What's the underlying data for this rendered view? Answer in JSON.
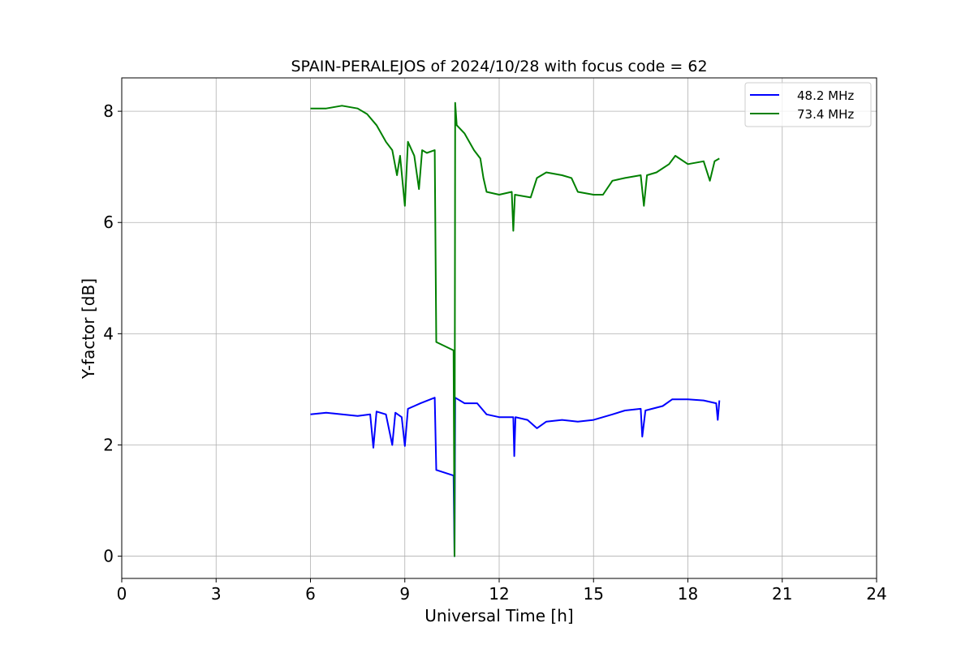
{
  "chart_data": {
    "type": "line",
    "title": "SPAIN-PERALEJOS of 2024/10/28 with focus code = 62",
    "xlabel": "Universal Time [h]",
    "ylabel": "Y-factor [dB]",
    "xlim": [
      0,
      24
    ],
    "ylim": [
      -0.4,
      8.6
    ],
    "xticks": [
      0,
      3,
      6,
      9,
      12,
      15,
      18,
      21,
      24
    ],
    "yticks": [
      0,
      2,
      4,
      6,
      8
    ],
    "grid": true,
    "legend_position": "top-right",
    "series": [
      {
        "name": "48.2 MHz",
        "color": "#0000ff",
        "points": [
          [
            6.0,
            2.55
          ],
          [
            6.5,
            2.58
          ],
          [
            7.0,
            2.55
          ],
          [
            7.5,
            2.52
          ],
          [
            7.9,
            2.55
          ],
          [
            8.0,
            1.95
          ],
          [
            8.1,
            2.6
          ],
          [
            8.4,
            2.55
          ],
          [
            8.6,
            2.0
          ],
          [
            8.7,
            2.58
          ],
          [
            8.9,
            2.5
          ],
          [
            9.0,
            1.98
          ],
          [
            9.1,
            2.65
          ],
          [
            9.5,
            2.75
          ],
          [
            9.95,
            2.85
          ],
          [
            10.0,
            1.55
          ],
          [
            10.55,
            1.45
          ],
          [
            10.58,
            0.0
          ],
          [
            10.6,
            2.85
          ],
          [
            10.9,
            2.75
          ],
          [
            11.3,
            2.75
          ],
          [
            11.6,
            2.55
          ],
          [
            12.0,
            2.5
          ],
          [
            12.45,
            2.5
          ],
          [
            12.48,
            1.8
          ],
          [
            12.52,
            2.5
          ],
          [
            12.9,
            2.45
          ],
          [
            13.2,
            2.3
          ],
          [
            13.5,
            2.42
          ],
          [
            14.0,
            2.45
          ],
          [
            14.5,
            2.42
          ],
          [
            15.0,
            2.45
          ],
          [
            15.6,
            2.55
          ],
          [
            16.0,
            2.62
          ],
          [
            16.5,
            2.65
          ],
          [
            16.55,
            2.15
          ],
          [
            16.65,
            2.62
          ],
          [
            17.2,
            2.7
          ],
          [
            17.5,
            2.82
          ],
          [
            18.0,
            2.82
          ],
          [
            18.5,
            2.8
          ],
          [
            18.9,
            2.75
          ],
          [
            18.95,
            2.45
          ],
          [
            19.0,
            2.8
          ]
        ]
      },
      {
        "name": "73.4 MHz",
        "color": "#008000",
        "points": [
          [
            6.0,
            8.05
          ],
          [
            6.5,
            8.05
          ],
          [
            7.0,
            8.1
          ],
          [
            7.5,
            8.05
          ],
          [
            7.8,
            7.95
          ],
          [
            8.1,
            7.75
          ],
          [
            8.4,
            7.45
          ],
          [
            8.6,
            7.3
          ],
          [
            8.75,
            6.85
          ],
          [
            8.85,
            7.2
          ],
          [
            9.0,
            6.3
          ],
          [
            9.1,
            7.45
          ],
          [
            9.3,
            7.2
          ],
          [
            9.45,
            6.6
          ],
          [
            9.55,
            7.3
          ],
          [
            9.7,
            7.25
          ],
          [
            9.95,
            7.3
          ],
          [
            10.0,
            3.85
          ],
          [
            10.55,
            3.7
          ],
          [
            10.58,
            0.0
          ],
          [
            10.6,
            8.15
          ],
          [
            10.65,
            7.75
          ],
          [
            10.9,
            7.6
          ],
          [
            11.2,
            7.3
          ],
          [
            11.4,
            7.15
          ],
          [
            11.5,
            6.8
          ],
          [
            11.6,
            6.55
          ],
          [
            12.0,
            6.5
          ],
          [
            12.4,
            6.55
          ],
          [
            12.45,
            5.85
          ],
          [
            12.5,
            6.5
          ],
          [
            13.0,
            6.45
          ],
          [
            13.2,
            6.8
          ],
          [
            13.5,
            6.9
          ],
          [
            14.0,
            6.85
          ],
          [
            14.3,
            6.8
          ],
          [
            14.5,
            6.55
          ],
          [
            15.0,
            6.5
          ],
          [
            15.3,
            6.5
          ],
          [
            15.6,
            6.75
          ],
          [
            16.0,
            6.8
          ],
          [
            16.5,
            6.85
          ],
          [
            16.6,
            6.3
          ],
          [
            16.7,
            6.85
          ],
          [
            17.0,
            6.9
          ],
          [
            17.4,
            7.05
          ],
          [
            17.6,
            7.2
          ],
          [
            18.0,
            7.05
          ],
          [
            18.5,
            7.1
          ],
          [
            18.7,
            6.75
          ],
          [
            18.85,
            7.1
          ],
          [
            19.0,
            7.15
          ]
        ]
      }
    ]
  }
}
